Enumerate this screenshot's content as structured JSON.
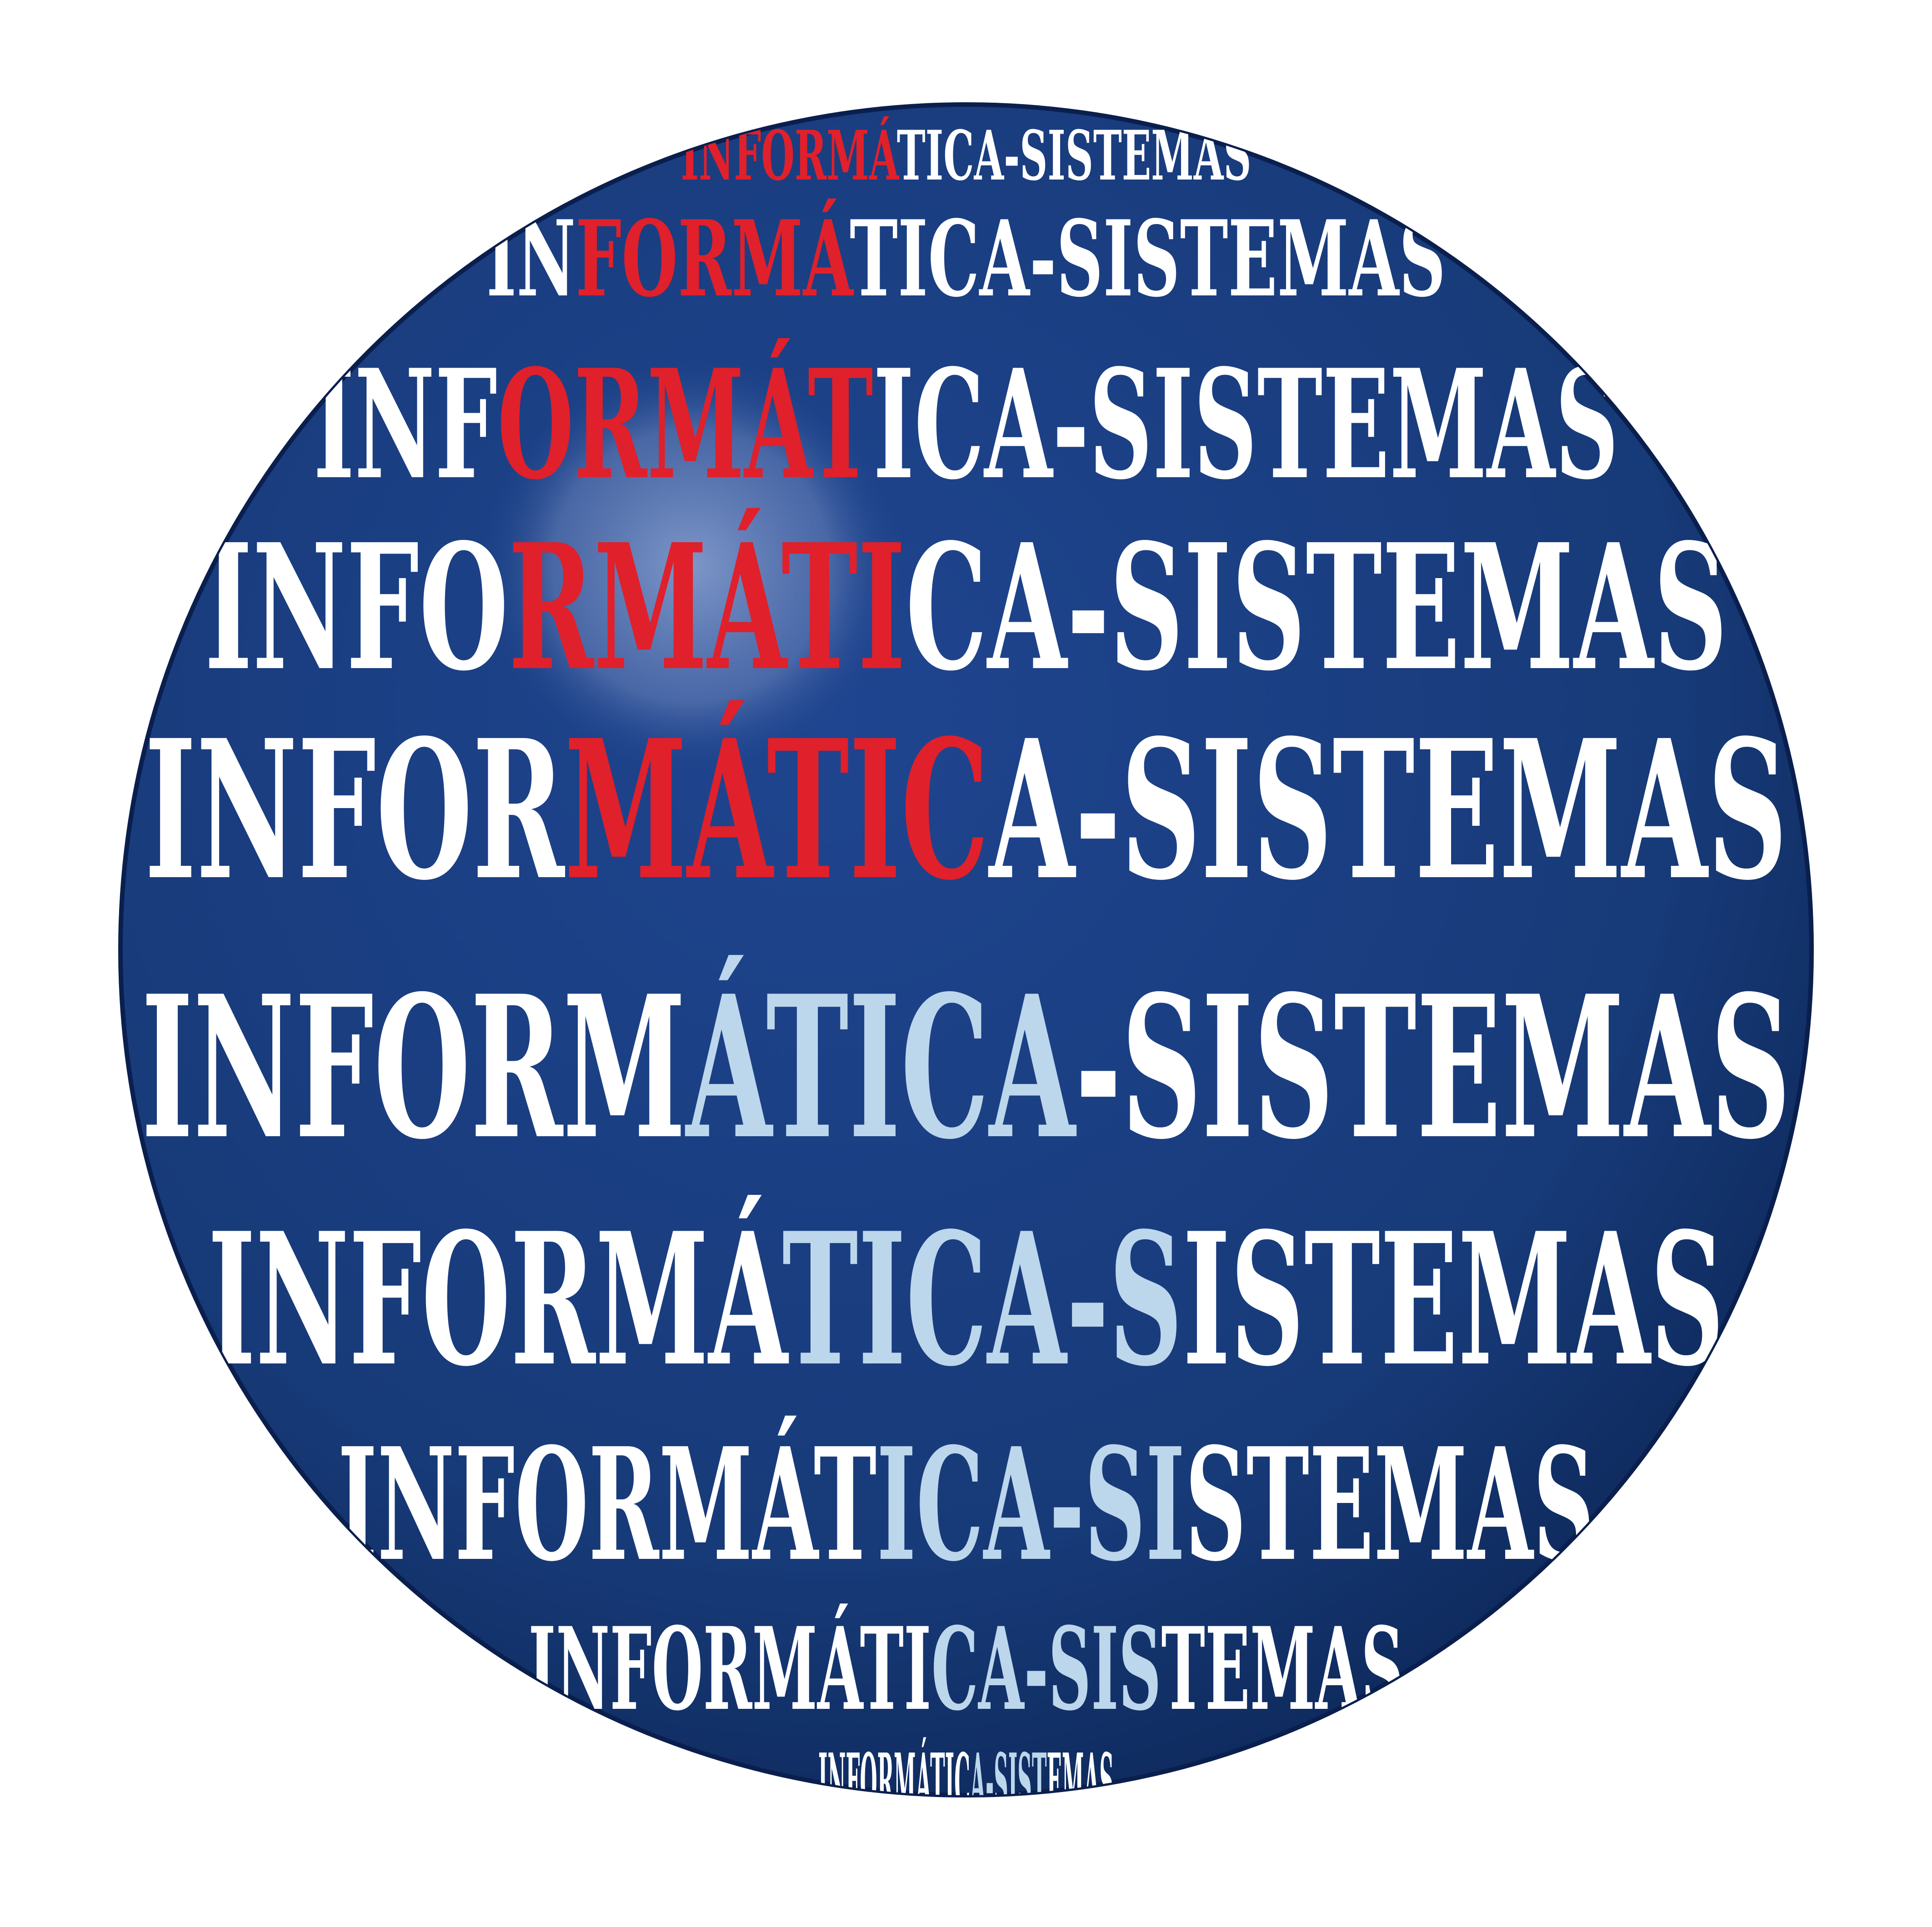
{
  "colors": {
    "background": "#ffffff",
    "globe": "#1a3c7a",
    "globe_edge": "#0a1f4e",
    "text_white": "#ffffff",
    "text_red": "#e0202b",
    "text_lightblue": "#bcd6ec",
    "highlight": "#7a8fbf"
  },
  "icons": {
    "globe": "globe-icon"
  },
  "lines": [
    {
      "segments": [
        {
          "text": "INFORMÁ",
          "tone": "red"
        },
        {
          "text": "TICA-SISTEMAS",
          "tone": "white"
        }
      ]
    },
    {
      "segments": [
        {
          "text": "IN",
          "tone": "white"
        },
        {
          "text": "FORMÁ",
          "tone": "red"
        },
        {
          "text": "TICA-SISTEMAS",
          "tone": "white"
        }
      ]
    },
    {
      "segments": [
        {
          "text": "INF",
          "tone": "white"
        },
        {
          "text": "ORMÁT",
          "tone": "red"
        },
        {
          "text": "ICA-SISTEMAS",
          "tone": "white"
        }
      ]
    },
    {
      "segments": [
        {
          "text": "INFO",
          "tone": "white"
        },
        {
          "text": "RMÁTI",
          "tone": "red"
        },
        {
          "text": "CA-SISTEMAS",
          "tone": "white"
        }
      ]
    },
    {
      "segments": [
        {
          "text": "INFOR",
          "tone": "white"
        },
        {
          "text": "MÁTIC",
          "tone": "red"
        },
        {
          "text": "A-SISTEMAS",
          "tone": "white"
        }
      ]
    },
    {
      "segments": [
        {
          "text": "INFORM",
          "tone": "white"
        },
        {
          "text": "ÁTICA",
          "tone": "lightblue"
        },
        {
          "text": "-SISTEMAS",
          "tone": "white"
        }
      ]
    },
    {
      "segments": [
        {
          "text": "INFORMÁ",
          "tone": "white"
        },
        {
          "text": "TICA-S",
          "tone": "lightblue"
        },
        {
          "text": "ISTEMAS",
          "tone": "white"
        }
      ]
    },
    {
      "segments": [
        {
          "text": "INFORMÁT",
          "tone": "white"
        },
        {
          "text": "ICA-SI",
          "tone": "lightblue"
        },
        {
          "text": "STEMAS",
          "tone": "white"
        }
      ]
    },
    {
      "segments": [
        {
          "text": "INFORMÁTI",
          "tone": "white"
        },
        {
          "text": "CA-SIS",
          "tone": "lightblue"
        },
        {
          "text": "TEMAS",
          "tone": "white"
        }
      ]
    },
    {
      "segments": [
        {
          "text": "INFORMÁTIC",
          "tone": "white"
        },
        {
          "text": "A-SIST",
          "tone": "lightblue"
        },
        {
          "text": "EMAS",
          "tone": "white"
        }
      ]
    }
  ]
}
